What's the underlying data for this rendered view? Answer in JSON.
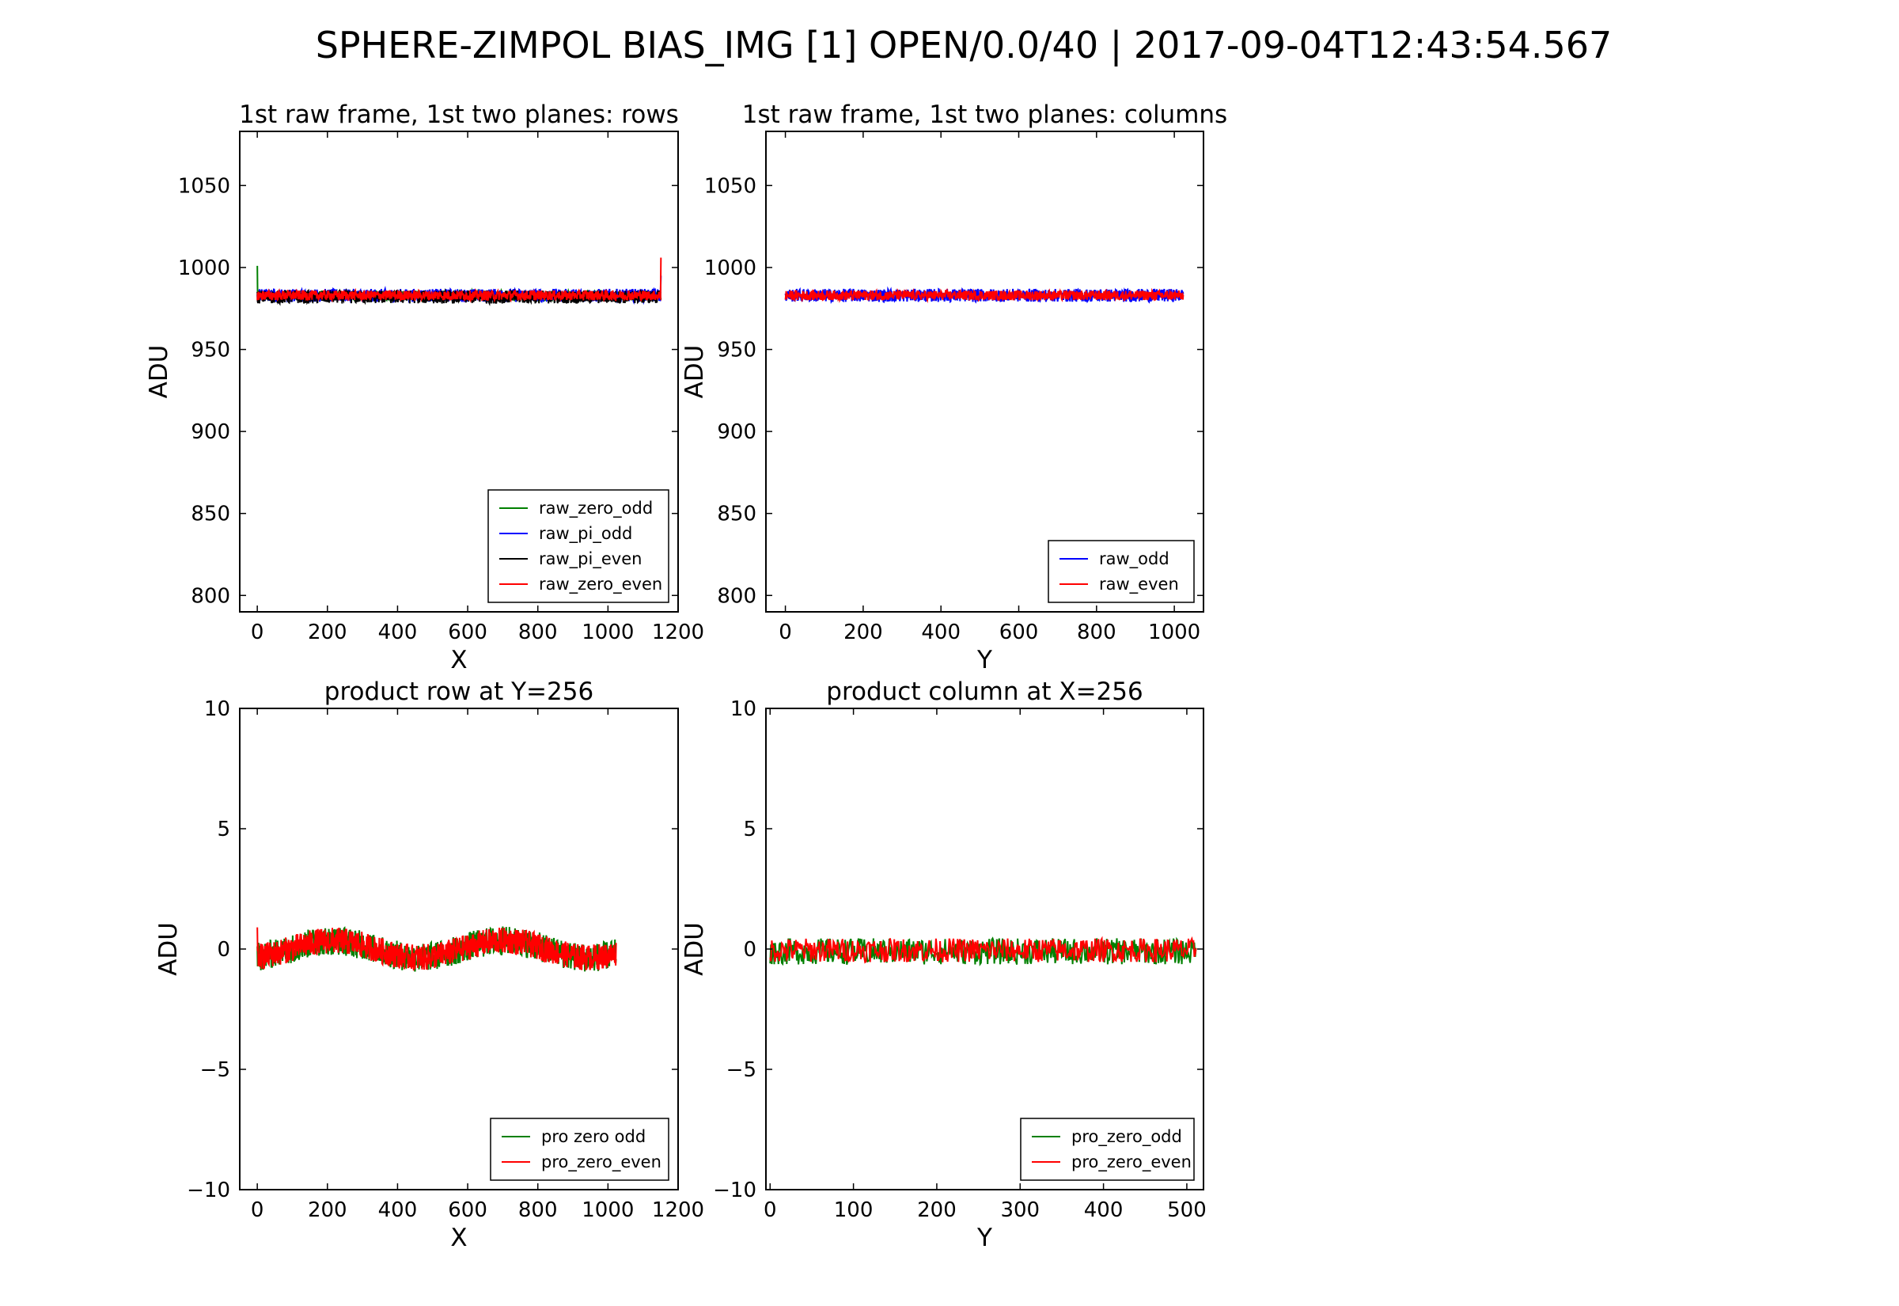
{
  "figure": {
    "title": "SPHERE-ZIMPOL BIAS_IMG [1] OPEN/0.0/40  |  2017-09-04T12:43:54.567"
  },
  "chart_data": [
    {
      "type": "line",
      "title": "1st raw frame, 1st two planes: rows",
      "xlabel": "X",
      "ylabel": "ADU",
      "xlim": [
        -50,
        1200
      ],
      "ylim": [
        790,
        1083
      ],
      "xticks": [
        0,
        200,
        400,
        600,
        800,
        1000,
        1200
      ],
      "yticks": [
        800,
        850,
        900,
        950,
        1000,
        1050
      ],
      "ytick_labels": [
        "800",
        "850",
        "900",
        "950",
        "1000",
        "1050"
      ],
      "xtick_labels": [
        "0",
        "200",
        "400",
        "600",
        "800",
        "1000",
        "1200"
      ],
      "legend": "lower-right",
      "series": [
        {
          "name": "raw_zero_odd",
          "color": "#008000",
          "x_range": [
            0,
            1151
          ],
          "center": 983,
          "amp": 3,
          "spikes": [
            [
              0,
              1001
            ]
          ]
        },
        {
          "name": "raw_pi_odd",
          "color": "#0000ff",
          "x_range": [
            0,
            1151
          ],
          "center": 983,
          "amp": 4,
          "spikes": [
            [
              1151,
              995
            ]
          ]
        },
        {
          "name": "raw_pi_even",
          "color": "#000000",
          "x_range": [
            0,
            1151
          ],
          "center": 982,
          "amp": 4,
          "spikes": []
        },
        {
          "name": "raw_zero_even",
          "color": "#ff0000",
          "x_range": [
            0,
            1151
          ],
          "center": 983,
          "amp": 3,
          "spikes": [
            [
              1151,
              1006
            ]
          ]
        }
      ]
    },
    {
      "type": "line",
      "title": "1st raw frame, 1st two planes: columns",
      "xlabel": "Y",
      "ylabel": "ADU",
      "xlim": [
        -50,
        1075
      ],
      "ylim": [
        790,
        1083
      ],
      "xticks": [
        0,
        200,
        400,
        600,
        800,
        1000
      ],
      "yticks": [
        800,
        850,
        900,
        950,
        1000,
        1050
      ],
      "ytick_labels": [
        "800",
        "850",
        "900",
        "950",
        "1000",
        "1050"
      ],
      "xtick_labels": [
        "0",
        "200",
        "400",
        "600",
        "800",
        "1000"
      ],
      "legend": "lower-right",
      "series": [
        {
          "name": "raw_odd",
          "color": "#0000ff",
          "x_range": [
            0,
            1023
          ],
          "center": 983,
          "amp": 4,
          "spikes": []
        },
        {
          "name": "raw_even",
          "color": "#ff0000",
          "x_range": [
            0,
            1023
          ],
          "center": 983,
          "amp": 3,
          "spikes": []
        }
      ]
    },
    {
      "type": "line",
      "title": "product row at Y=256",
      "xlabel": "X",
      "ylabel": "ADU",
      "xlim": [
        -50,
        1200
      ],
      "ylim": [
        -10,
        10
      ],
      "xticks": [
        0,
        200,
        400,
        600,
        800,
        1000,
        1200
      ],
      "yticks": [
        -10,
        -5,
        0,
        5,
        10
      ],
      "ytick_labels": [
        "−10",
        "−5",
        "0",
        "5",
        "10"
      ],
      "xtick_labels": [
        "0",
        "200",
        "400",
        "600",
        "800",
        "1000",
        "1200"
      ],
      "legend": "lower-right",
      "series": [
        {
          "name": "pro zero odd",
          "color": "#008000",
          "x_range": [
            0,
            1023
          ],
          "center": 0,
          "amp": 0.6,
          "wave": 0.35,
          "spikes": []
        },
        {
          "name": "pro_zero_even",
          "color": "#ff0000",
          "x_range": [
            0,
            1023
          ],
          "center": 0,
          "amp": 0.55,
          "wave": 0.35,
          "spikes": [
            [
              0,
              0.9
            ]
          ]
        }
      ]
    },
    {
      "type": "line",
      "title": "product column at X=256",
      "xlabel": "Y",
      "ylabel": "ADU",
      "xlim": [
        -5,
        520
      ],
      "ylim": [
        -10,
        10
      ],
      "xticks": [
        0,
        100,
        200,
        300,
        400,
        500
      ],
      "yticks": [
        -10,
        -5,
        0,
        5,
        10
      ],
      "ytick_labels": [
        "−10",
        "−5",
        "0",
        "5",
        "10"
      ],
      "xtick_labels": [
        "0",
        "100",
        "200",
        "300",
        "400",
        "500"
      ],
      "legend": "lower-right",
      "series": [
        {
          "name": "pro_zero_odd",
          "color": "#008000",
          "x_range": [
            0,
            511
          ],
          "center": -0.1,
          "amp": 0.55,
          "wave": 0,
          "spikes": []
        },
        {
          "name": "pro_zero_even",
          "color": "#ff0000",
          "x_range": [
            0,
            511
          ],
          "center": -0.05,
          "amp": 0.5,
          "wave": 0,
          "spikes": []
        }
      ]
    }
  ]
}
